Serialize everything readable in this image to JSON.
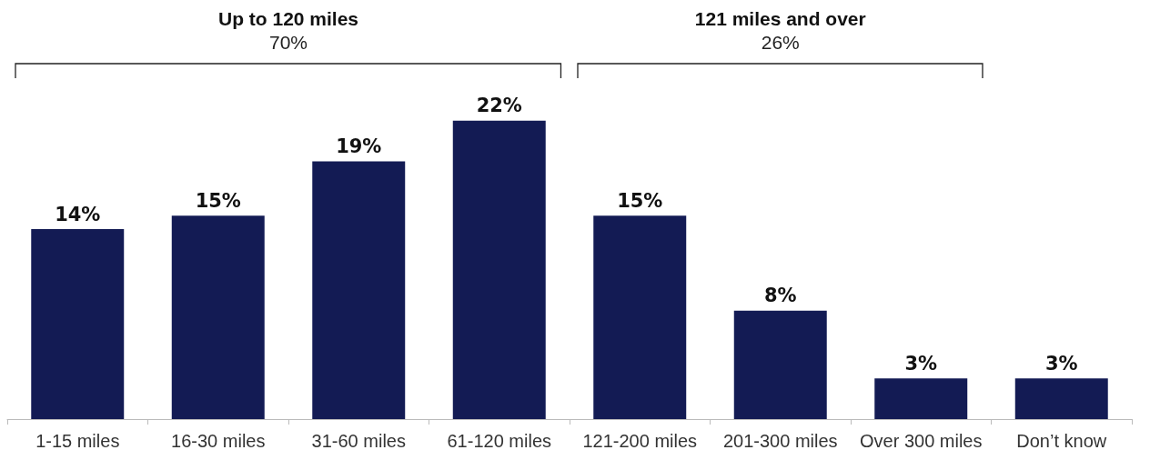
{
  "chart_data": {
    "type": "bar",
    "categories": [
      "1-15 miles",
      "16-30 miles",
      "31-60 miles",
      "61-120 miles",
      "121-200 miles",
      "201-300 miles",
      "Over 300 miles",
      "Don’t know"
    ],
    "values": [
      14,
      15,
      19,
      22,
      15,
      8,
      3,
      3
    ],
    "value_labels": [
      "14%",
      "15%",
      "19%",
      "22%",
      "15%",
      "8%",
      "3%",
      "3%"
    ],
    "color": "#131b54",
    "annotations": [
      "Up to 120 miles",
      "70%",
      "121 miles and over",
      "26%"
    ]
  }
}
